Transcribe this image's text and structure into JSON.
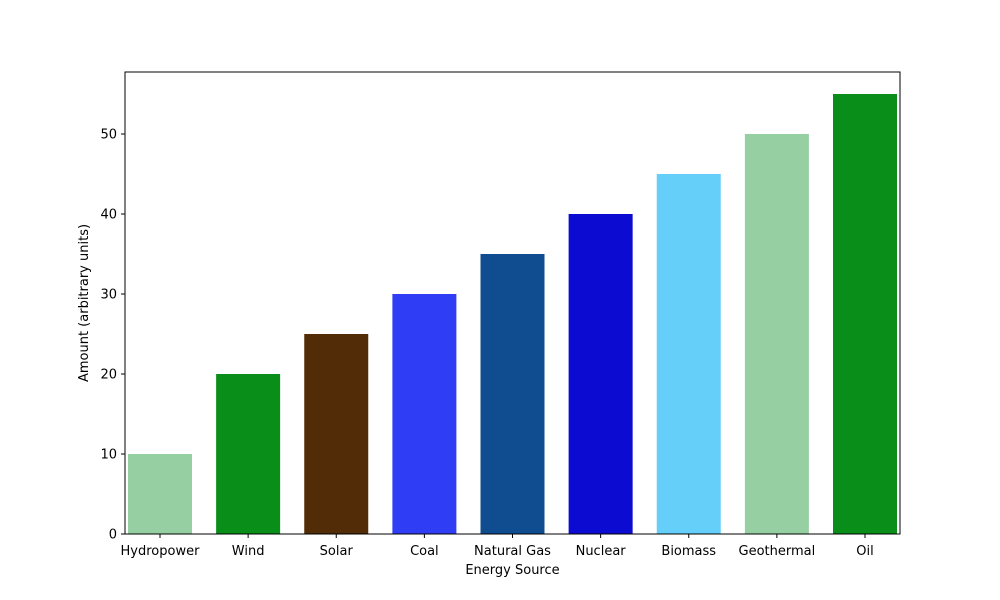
{
  "chart_data": {
    "type": "bar",
    "title": "",
    "xlabel": "Energy Source",
    "ylabel": "Amount (arbitrary units)",
    "categories": [
      "Hydropower",
      "Wind",
      "Solar",
      "Coal",
      "Natural Gas",
      "Nuclear",
      "Biomass",
      "Geothermal",
      "Oil"
    ],
    "values": [
      10,
      20,
      25,
      30,
      35,
      40,
      45,
      50,
      55
    ],
    "colors": [
      "#96cfa2",
      "#098e1a",
      "#512c07",
      "#2f3ef5",
      "#0f4c90",
      "#0b0bd1",
      "#66cff9",
      "#96cfa2",
      "#098e1a"
    ],
    "ylim": [
      0,
      57.75
    ],
    "yticks": [
      0,
      10,
      20,
      30,
      40,
      50
    ],
    "grid": false,
    "legend": "none"
  }
}
